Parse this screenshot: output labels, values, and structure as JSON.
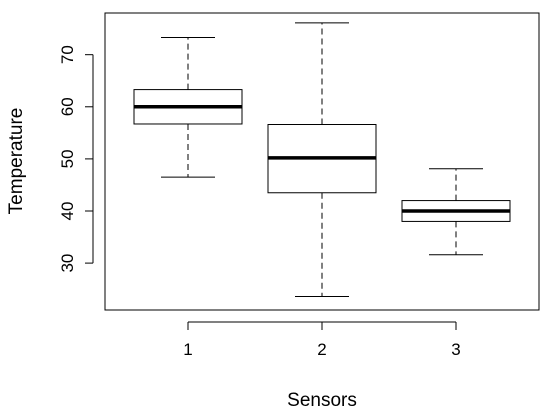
{
  "chart_data": {
    "type": "box",
    "xlabel": "Sensors",
    "ylabel": "Temperature",
    "categories": [
      "1",
      "2",
      "3"
    ],
    "ylim": [
      21,
      78
    ],
    "yticks": [
      30,
      40,
      50,
      60,
      70
    ],
    "series": [
      {
        "category": "1",
        "whisker_low": 46.5,
        "q1": 56.7,
        "median": 60.0,
        "q3": 63.3,
        "whisker_high": 73.3
      },
      {
        "category": "2",
        "whisker_low": 23.6,
        "q1": 43.5,
        "median": 50.2,
        "q3": 56.6,
        "whisker_high": 76.1
      },
      {
        "category": "3",
        "whisker_low": 31.6,
        "q1": 38.0,
        "median": 40.0,
        "q3": 42.0,
        "whisker_high": 48.1
      }
    ],
    "grid": false,
    "legend": "none"
  }
}
